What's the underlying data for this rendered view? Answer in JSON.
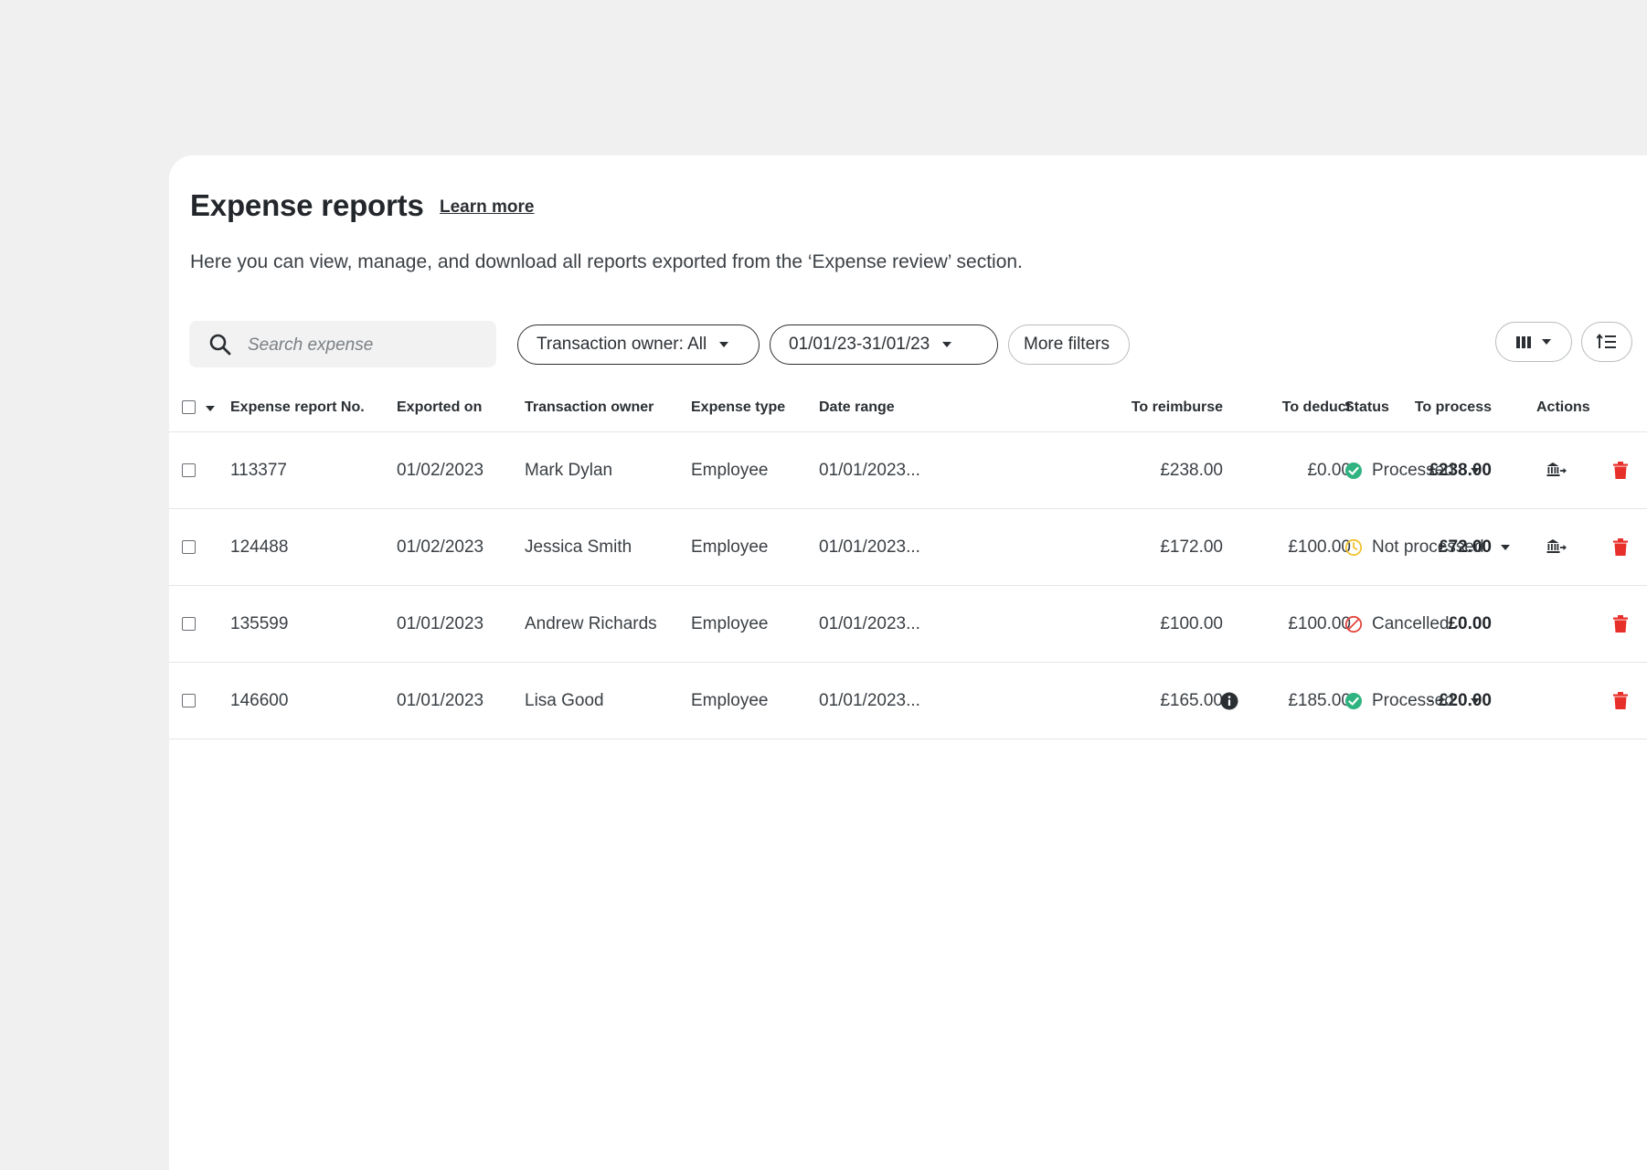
{
  "header": {
    "title": "Expense reports",
    "learn_more": "Learn more",
    "subtitle": "Here you can view, manage, and download all reports exported from the ‘Expense review’ section."
  },
  "filters": {
    "search_placeholder": "Search expense",
    "transaction_owner": "Transaction owner: All",
    "date_range": "01/01/23-31/01/23",
    "more_filters": "More filters"
  },
  "table": {
    "columns": {
      "report_no": "Expense report No.",
      "exported_on": "Exported on",
      "owner": "Transaction owner",
      "type": "Expense type",
      "date_range": "Date range",
      "to_reimburse": "To reimburse",
      "to_deduct": "To deduct",
      "to_process": "To process",
      "status": "Status",
      "actions": "Actions"
    },
    "rows": [
      {
        "report_no": "113377",
        "exported_on": "01/02/2023",
        "owner": "Mark Dylan",
        "type": "Employee",
        "date_range": "01/01/2023...",
        "to_reimburse": "£238.00",
        "to_deduct": "£0.00",
        "to_process": "£238.00",
        "status": "Processed",
        "status_kind": "processed",
        "status_dropdown": true,
        "bank_action": true,
        "info_icon": false
      },
      {
        "report_no": "124488",
        "exported_on": "01/02/2023",
        "owner": "Jessica Smith",
        "type": "Employee",
        "date_range": "01/01/2023...",
        "to_reimburse": "£172.00",
        "to_deduct": "£100.00",
        "to_process": "£72.00",
        "status": "Not processed",
        "status_kind": "pending",
        "status_dropdown": true,
        "bank_action": true,
        "info_icon": false
      },
      {
        "report_no": "135599",
        "exported_on": "01/01/2023",
        "owner": "Andrew Richards",
        "type": "Employee",
        "date_range": "01/01/2023...",
        "to_reimburse": "£100.00",
        "to_deduct": "£100.00",
        "to_process": "£0.00",
        "status": "Cancelled",
        "status_kind": "cancelled",
        "status_dropdown": false,
        "bank_action": false,
        "info_icon": false
      },
      {
        "report_no": "146600",
        "exported_on": "01/01/2023",
        "owner": "Lisa Good",
        "type": "Employee",
        "date_range": "01/01/2023...",
        "to_reimburse": "£165.00",
        "to_deduct": "£185.00",
        "to_process": "- £20.00",
        "status": "Processed",
        "status_kind": "processed",
        "status_dropdown": true,
        "bank_action": false,
        "info_icon": true
      }
    ]
  },
  "colors": {
    "processed": "#2fb380",
    "pending": "#f2c230",
    "cancelled": "#e4463d",
    "delete": "#e8302a"
  },
  "icons": {
    "search": "search-icon",
    "columns": "columns-icon",
    "sort": "sort-icon",
    "bank_transfer": "bank-transfer-icon",
    "delete": "trash-icon",
    "info": "info-icon"
  }
}
